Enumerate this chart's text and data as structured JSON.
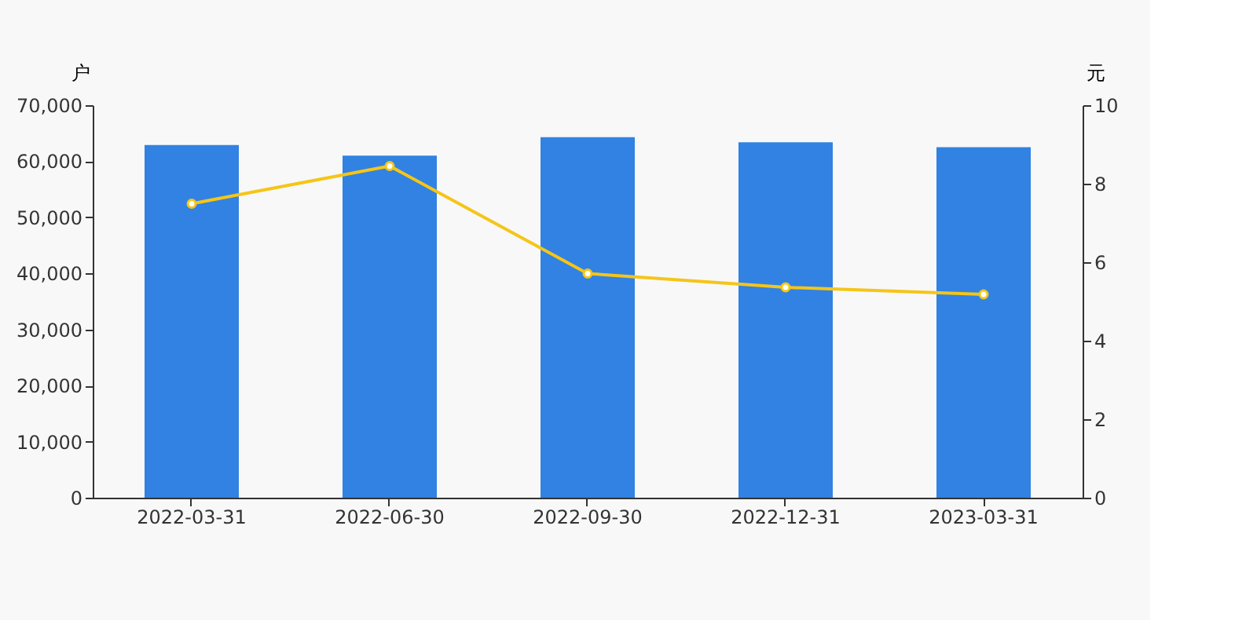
{
  "chart_data": {
    "type": "bar",
    "ylabel": "户",
    "y2label": "元",
    "categories": [
      "2022-03-31",
      "2022-06-30",
      "2022-09-30",
      "2022-12-31",
      "2023-03-31"
    ],
    "series": [
      {
        "color": "#3182e2",
        "values": [
          62900,
          61000,
          64300,
          63400,
          62500
        ]
      },
      {
        "type": "line",
        "axis": "y2",
        "color": "#f5c518",
        "marker": "circle",
        "values": [
          7.49,
          8.45,
          5.71,
          5.36,
          5.18
        ]
      }
    ],
    "ylim": [
      0,
      70000
    ],
    "yticks": [
      0,
      {
        "value": 10000,
        "label": "10,000"
      },
      {
        "value": 20000,
        "label": "20,000"
      },
      {
        "value": 30000,
        "label": "30,000"
      },
      {
        "value": 40000,
        "label": "40,000"
      },
      {
        "value": 50000,
        "label": "50,000"
      },
      {
        "value": 60000,
        "label": "60,000"
      },
      {
        "value": 70000,
        "label": "70,000"
      }
    ],
    "y2lim": [
      0,
      10
    ],
    "y2ticks": [
      0,
      2,
      4,
      6,
      8,
      10
    ],
    "grid": false
  }
}
